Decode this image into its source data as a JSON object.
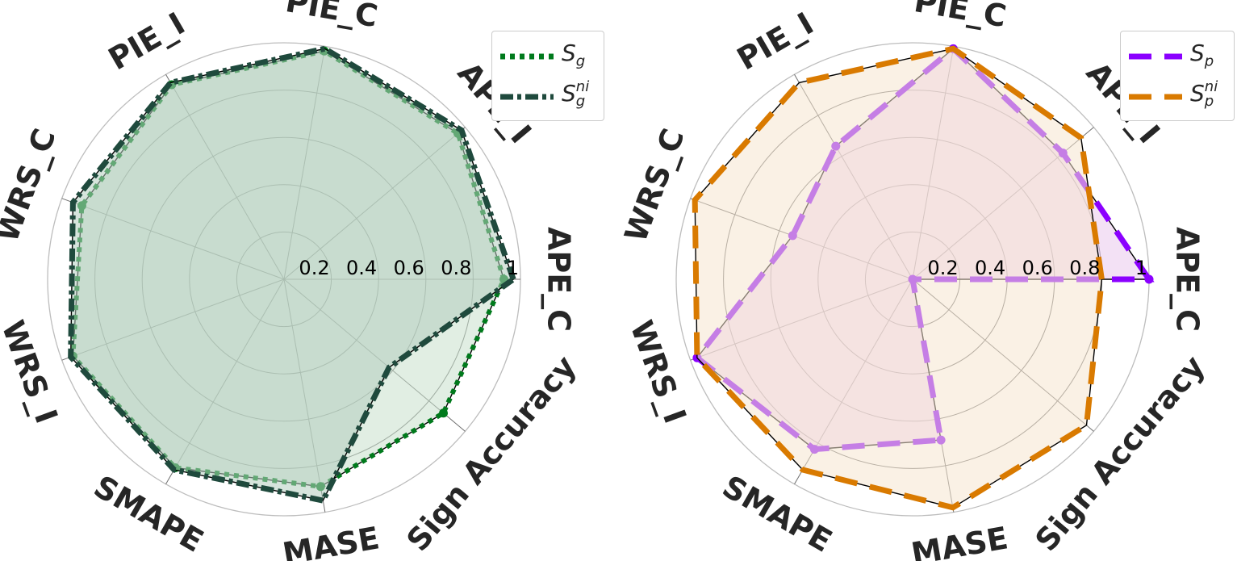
{
  "chart_data": [
    {
      "type": "radar",
      "axes": [
        "APE_C",
        "APE_I",
        "PIE_C",
        "PIE_I",
        "WRS_C",
        "WRS_I",
        "SMAPE",
        "MASE",
        "Sign Accuracy"
      ],
      "rlim": [
        0,
        1
      ],
      "rticks": [
        "0.2",
        "0.4",
        "0.6",
        "0.8",
        "1"
      ],
      "legend_position": "top-right",
      "grid": true,
      "series": [
        {
          "name": "S_g",
          "legend_base": "S",
          "legend_sub": "g",
          "legend_sup": "",
          "values": [
            0.93,
            0.96,
            0.98,
            0.95,
            0.91,
            0.95,
            0.92,
            0.89,
            0.88
          ],
          "color": "#007a1c",
          "fill": "#c8e0cc",
          "style": "dotted",
          "markers": true
        },
        {
          "name": "S_g^ni",
          "legend_base": "S",
          "legend_sub": "g",
          "legend_sup": "ni",
          "values": [
            0.97,
            0.98,
            0.99,
            0.96,
            0.95,
            0.96,
            0.93,
            0.95,
            0.58
          ],
          "color": "#1f4a3d",
          "fill": "#b5cec0",
          "style": "dashdot",
          "markers": false
        }
      ]
    },
    {
      "type": "radar",
      "axes": [
        "APE_C",
        "APE_I",
        "PIE_C",
        "PIE_I",
        "WRS_C",
        "WRS_I",
        "SMAPE",
        "MASE",
        "Sign Accuracy"
      ],
      "rlim": [
        0,
        1
      ],
      "rticks": [
        "0.2",
        "0.4",
        "0.6",
        "0.8",
        "1"
      ],
      "legend_position": "top-right",
      "grid": true,
      "series": [
        {
          "name": "S_p",
          "legend_base": "S",
          "legend_sub": "p",
          "legend_sup": "",
          "values": [
            1.0,
            0.83,
            0.99,
            0.65,
            0.54,
            0.97,
            0.83,
            0.69,
            0.0
          ],
          "color": "#8b00ff",
          "fill": "#e9c8ec",
          "style": "dashed",
          "markers": true
        },
        {
          "name": "S_p^ni",
          "legend_base": "S",
          "legend_sub": "p",
          "legend_sup": "ni",
          "values": [
            0.8,
            0.93,
            0.99,
            0.96,
            0.98,
            0.97,
            0.93,
            0.98,
            0.96
          ],
          "color": "#d97a00",
          "fill": "#f6e6cf",
          "style": "dashed",
          "markers": false
        }
      ]
    }
  ]
}
